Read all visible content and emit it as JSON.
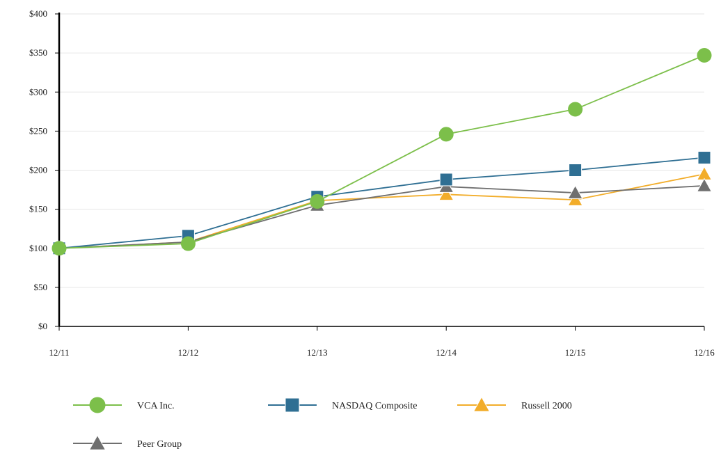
{
  "chart_data": {
    "type": "line",
    "categories": [
      "12/11",
      "12/12",
      "12/13",
      "12/14",
      "12/15",
      "12/16"
    ],
    "ylim": [
      0,
      400
    ],
    "yticks": [
      "$0",
      "$50",
      "$100",
      "$150",
      "$200",
      "$250",
      "$300",
      "$350",
      "$400"
    ],
    "grid": true,
    "legend": "bottom",
    "series": [
      {
        "name": "VCA Inc.",
        "values": [
          100,
          106,
          160,
          246,
          278,
          347
        ],
        "color": "#7cbf4a",
        "marker": "circle"
      },
      {
        "name": "NASDAQ Composite",
        "values": [
          100,
          116,
          166,
          188,
          200,
          216
        ],
        "color": "#2f6f93",
        "marker": "square"
      },
      {
        "name": "Russell 2000",
        "values": [
          100,
          108,
          161,
          169,
          162,
          195
        ],
        "color": "#f2ad2a",
        "marker": "triangle"
      },
      {
        "name": "Peer Group",
        "values": [
          100,
          108,
          155,
          179,
          171,
          180
        ],
        "color": "#6f6f6f",
        "marker": "triangle"
      }
    ]
  }
}
